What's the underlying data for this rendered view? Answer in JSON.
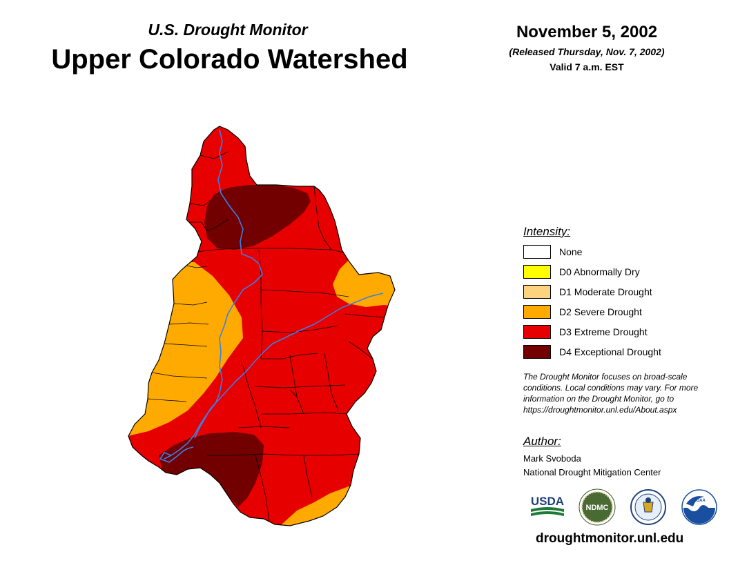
{
  "header": {
    "subtitle": "U.S. Drought Monitor",
    "title": "Upper Colorado Watershed",
    "date": "November 5, 2002",
    "released": "(Released Thursday, Nov. 7, 2002)",
    "valid": "Valid 7 a.m. EST"
  },
  "legend": {
    "title": "Intensity:",
    "items": [
      {
        "label": "None",
        "color": "#ffffff"
      },
      {
        "label": "D0 Abnormally Dry",
        "color": "#ffff00"
      },
      {
        "label": "D1 Moderate Drought",
        "color": "#fcd37f"
      },
      {
        "label": "D2 Severe Drought",
        "color": "#ffaa00"
      },
      {
        "label": "D3 Extreme Drought",
        "color": "#e60000"
      },
      {
        "label": "D4 Exceptional Drought",
        "color": "#730000"
      }
    ]
  },
  "note": {
    "line1": "The Drought Monitor focuses on broad-scale",
    "line2": "conditions. Local conditions may vary. For more",
    "line3": "information on the Drought Monitor, go to",
    "line4": "https://droughtmonitor.unl.edu/About.aspx"
  },
  "author": {
    "title": "Author:",
    "name": "Mark Svoboda",
    "org": "National Drought Mitigation Center"
  },
  "logos": {
    "usda": "USDA",
    "ndmc": "NDMC",
    "noaa": "NOAA"
  },
  "website": "droughtmonitor.unl.edu",
  "map_colors": {
    "d2": "#ffaa00",
    "d3": "#e60000",
    "d4": "#730000",
    "river": "#3a7fe8",
    "boundary": "#000000"
  }
}
